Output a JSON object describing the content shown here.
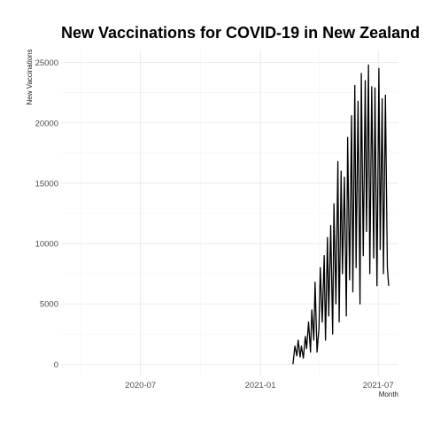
{
  "chart_data": {
    "type": "line",
    "title": "New Vaccinations for COVID-19 in New Zealand",
    "xlabel": "Month",
    "ylabel": "New Vaccinations",
    "x_type": "date",
    "xlim": [
      "2020-03-01",
      "2021-08-01"
    ],
    "ylim": [
      -1000,
      26000
    ],
    "x_ticks": [
      {
        "value": "2020-04-01",
        "label": "",
        "major": false
      },
      {
        "value": "2020-07-01",
        "label": "2020-07",
        "major": true
      },
      {
        "value": "2020-10-01",
        "label": "",
        "major": false
      },
      {
        "value": "2021-01-01",
        "label": "2021-01",
        "major": true
      },
      {
        "value": "2021-04-01",
        "label": "",
        "major": false
      },
      {
        "value": "2021-07-01",
        "label": "2021-07",
        "major": true
      }
    ],
    "y_ticks": [
      {
        "value": 0,
        "label": "0"
      },
      {
        "value": 5000,
        "label": "5000"
      },
      {
        "value": 10000,
        "label": "10000"
      },
      {
        "value": 15000,
        "label": "15000"
      },
      {
        "value": 20000,
        "label": "20000"
      },
      {
        "value": 25000,
        "label": "25000"
      }
    ],
    "grid": true,
    "legend": "none",
    "series": [
      {
        "color": "#000000",
        "x": [
          "2021-02-20",
          "2021-02-23",
          "2021-02-26",
          "2021-02-28",
          "2021-03-03",
          "2021-03-05",
          "2021-03-08",
          "2021-03-11",
          "2021-03-13",
          "2021-03-16",
          "2021-03-19",
          "2021-03-21",
          "2021-03-24",
          "2021-03-26",
          "2021-03-29",
          "2021-04-01",
          "2021-04-03",
          "2021-04-06",
          "2021-04-09",
          "2021-04-11",
          "2021-04-14",
          "2021-04-16",
          "2021-04-19",
          "2021-04-22",
          "2021-04-24",
          "2021-04-27",
          "2021-04-30",
          "2021-05-02",
          "2021-05-05",
          "2021-05-07",
          "2021-05-10",
          "2021-05-13",
          "2021-05-15",
          "2021-05-18",
          "2021-05-21",
          "2021-05-23",
          "2021-05-26",
          "2021-05-28",
          "2021-05-31",
          "2021-06-03",
          "2021-06-05",
          "2021-06-08",
          "2021-06-11",
          "2021-06-13",
          "2021-06-16",
          "2021-06-18",
          "2021-06-21",
          "2021-06-24",
          "2021-06-26",
          "2021-06-29",
          "2021-07-02",
          "2021-07-04",
          "2021-07-07",
          "2021-07-09",
          "2021-07-12",
          "2021-07-15",
          "2021-07-17"
        ],
        "y": [
          0,
          1500,
          700,
          2000,
          600,
          1500,
          500,
          2300,
          1300,
          3500,
          1000,
          4500,
          2000,
          6800,
          1000,
          3000,
          8000,
          3500,
          9000,
          2000,
          10500,
          4000,
          11500,
          2500,
          13300,
          5000,
          16800,
          3500,
          16000,
          7500,
          15500,
          4000,
          18800,
          7000,
          20600,
          6000,
          23100,
          8000,
          21800,
          5000,
          24100,
          9000,
          23500,
          11000,
          24800,
          7500,
          23000,
          8800,
          22900,
          6500,
          24500,
          9500,
          22000,
          7500,
          22300,
          8000,
          6500
        ]
      }
    ]
  }
}
